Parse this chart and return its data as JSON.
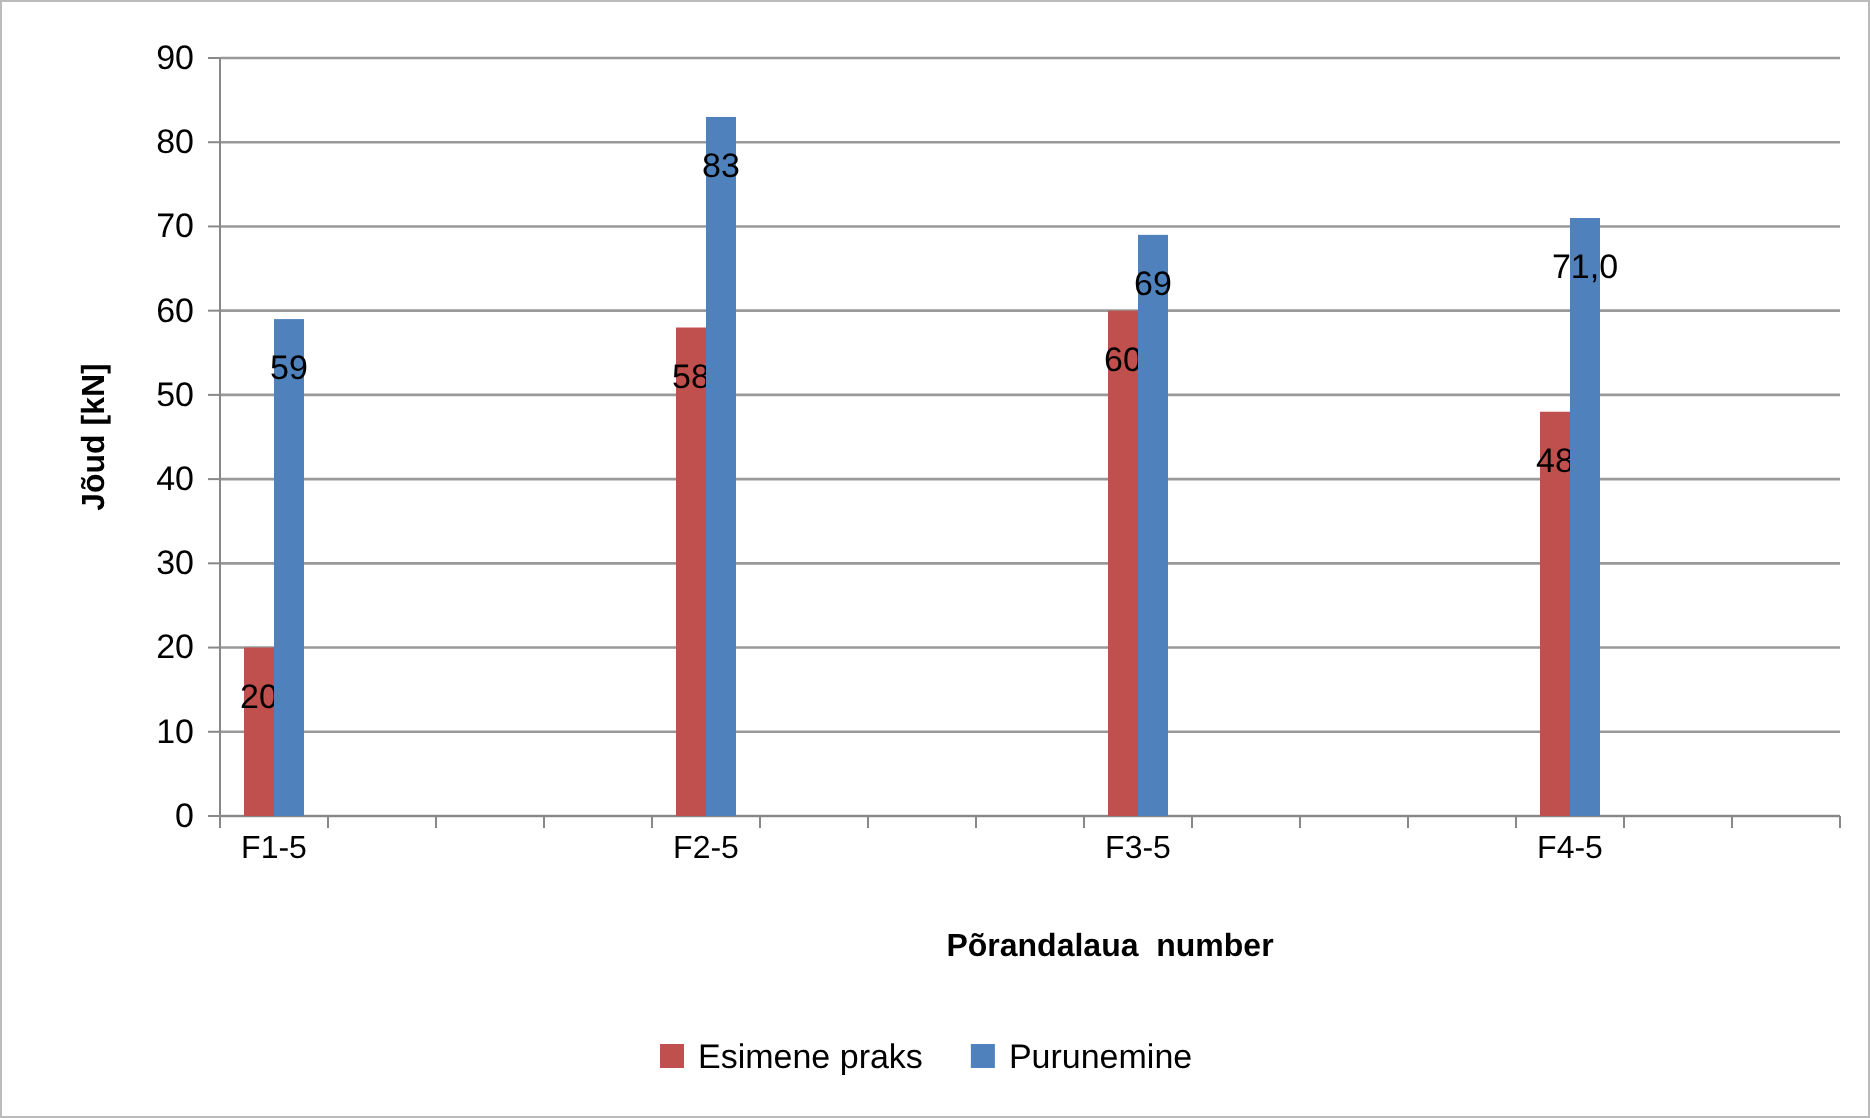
{
  "chart_data": {
    "type": "bar",
    "xlabel": "Põrandalaua  number",
    "ylabel": "Jõud [kN]",
    "categories": [
      "F1-5",
      null,
      null,
      null,
      "F2-5",
      null,
      null,
      null,
      "F3-5",
      null,
      null,
      null,
      "F4-5",
      null,
      null
    ],
    "series": [
      {
        "name": "Esimene praks",
        "color": "#c0504d",
        "values": [
          20,
          null,
          null,
          null,
          58,
          null,
          null,
          null,
          60,
          null,
          null,
          null,
          48,
          null,
          null
        ],
        "value_labels": [
          "20",
          null,
          null,
          null,
          "58",
          null,
          null,
          null,
          "60",
          null,
          null,
          null,
          "48",
          null,
          null
        ]
      },
      {
        "name": "Purunemine",
        "color": "#4f81bd",
        "values": [
          59,
          null,
          null,
          null,
          83,
          null,
          null,
          null,
          69,
          null,
          null,
          null,
          71.0,
          null,
          null
        ],
        "value_labels": [
          "59",
          null,
          null,
          null,
          "83",
          null,
          null,
          null,
          "69",
          null,
          null,
          null,
          "71,0",
          null,
          null
        ]
      }
    ],
    "ylim": [
      0,
      90
    ],
    "yticks": [
      0,
      10,
      20,
      30,
      40,
      50,
      60,
      70,
      80,
      90
    ],
    "grid": "y",
    "legend": "bottom"
  }
}
